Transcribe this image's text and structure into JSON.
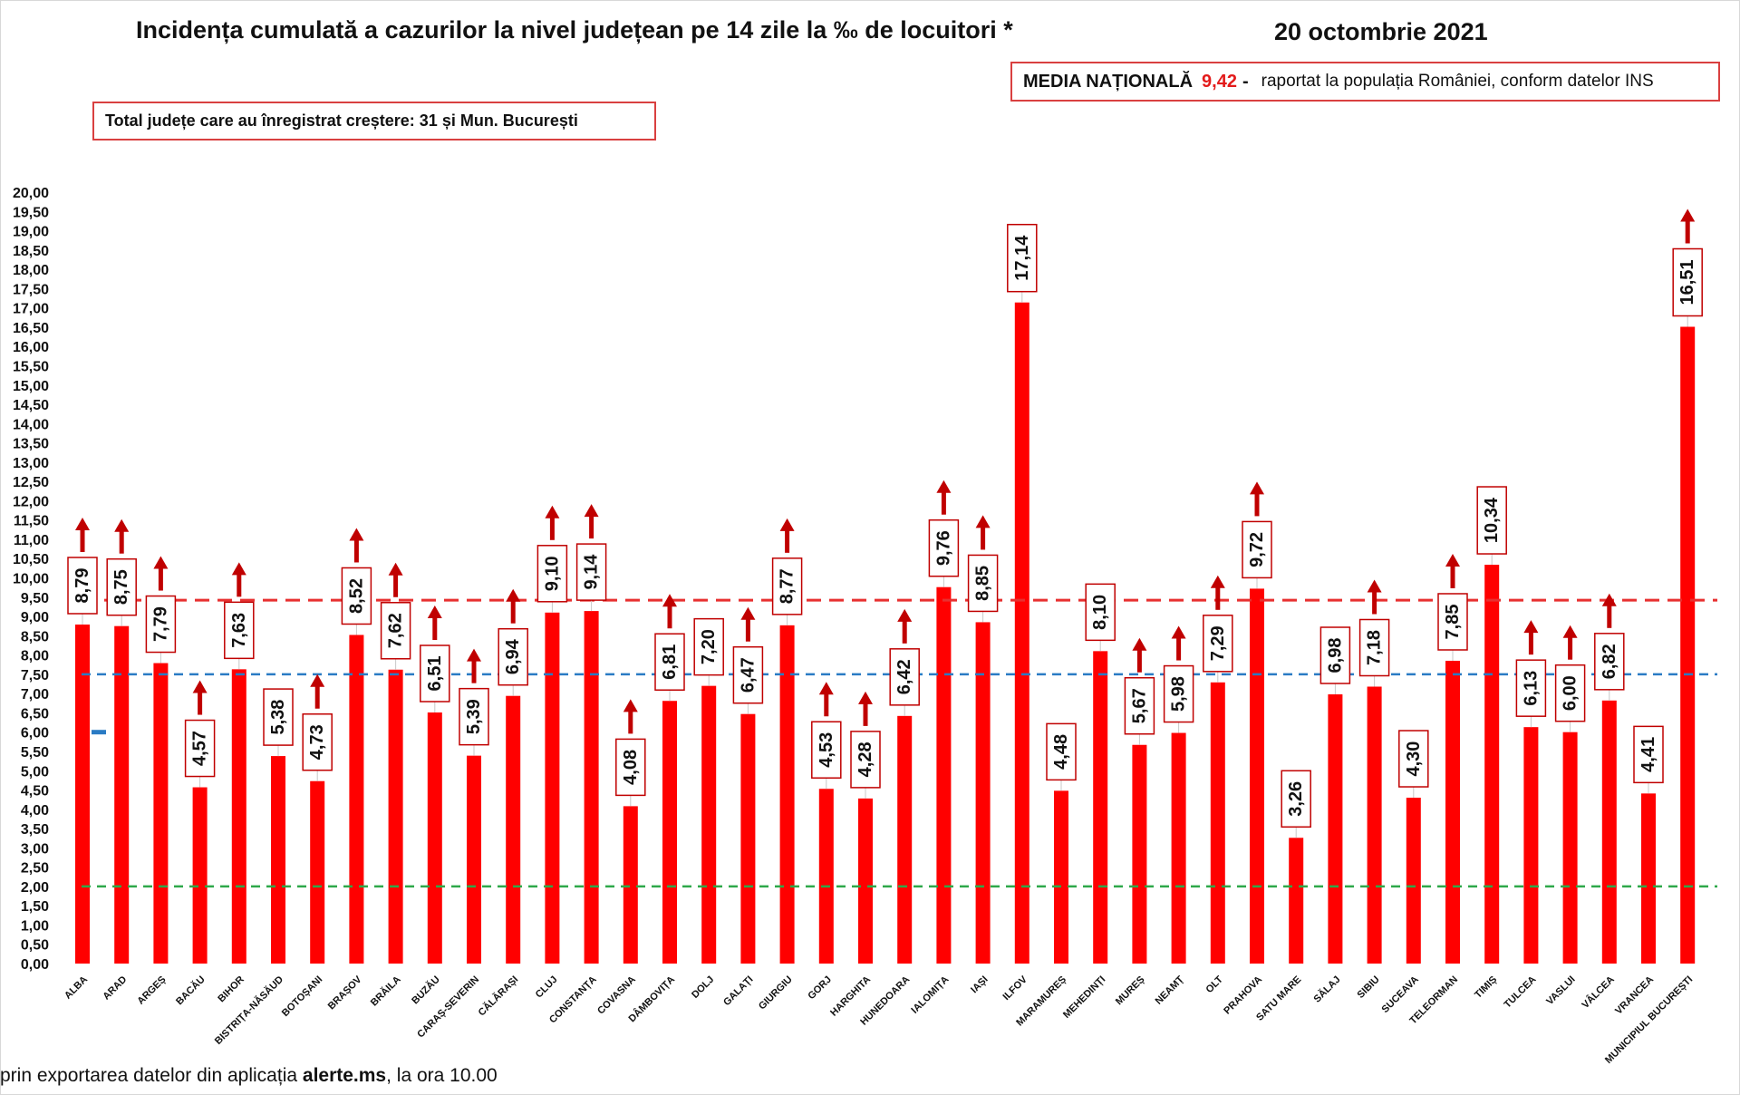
{
  "header": {
    "title": "Incidența cumulată a cazurilor la nivel județean pe 14 zile la ‰ de locuitori *",
    "date": "20 octombrie 2021"
  },
  "media_box": {
    "label": "MEDIA NAȚIONALĂ",
    "value": "9,42",
    "dash": "-",
    "note": "raportat la populația României, conform datelor INS"
  },
  "total_box": {
    "text": "Total județe care au înregistrat creștere:  31 și Mun. București"
  },
  "footer": {
    "prefix": "prin exportarea datelor din aplicația",
    "app": "alerte.ms",
    "suffix": ", la ora 10.00"
  },
  "colors": {
    "bar": "#ff0000",
    "arrow": "#c00000",
    "label_border": "#c00000",
    "line_red": "#e83030",
    "line_blue": "#2a7bc4",
    "line_green": "#2ea84a"
  },
  "chart_data": {
    "type": "bar",
    "ylim": [
      0,
      20
    ],
    "y_ticks": [
      "0,00",
      "0,50",
      "1,00",
      "1,50",
      "2,00",
      "2,50",
      "3,00",
      "3,50",
      "4,00",
      "4,50",
      "5,00",
      "5,50",
      "6,00",
      "6,50",
      "7,00",
      "7,50",
      "8,00",
      "8,50",
      "9,00",
      "9,50",
      "10,00",
      "10,50",
      "11,00",
      "11,50",
      "12,00",
      "12,50",
      "13,00",
      "13,50",
      "14,00",
      "14,50",
      "15,00",
      "15,50",
      "16,00",
      "16,50",
      "17,00",
      "17,50",
      "18,00",
      "18,50",
      "19,00",
      "19,50",
      "20,00"
    ],
    "categories": [
      "ALBA",
      "ARAD",
      "ARGEȘ",
      "BACĂU",
      "BIHOR",
      "BISTRIȚA-NĂSĂUD",
      "BOTOȘANI",
      "BRAȘOV",
      "BRĂILA",
      "BUZĂU",
      "CARAȘ-SEVERIN",
      "CĂLĂRAȘI",
      "CLUJ",
      "CONSTANȚA",
      "COVASNA",
      "DÂMBOVIȚA",
      "DOLJ",
      "GALAȚI",
      "GIURGIU",
      "GORJ",
      "HARGHITA",
      "HUNEDOARA",
      "IALOMIȚA",
      "IAȘI",
      "ILFOV",
      "MARAMUREȘ",
      "MEHEDINȚI",
      "MUREȘ",
      "NEAMȚ",
      "OLT",
      "PRAHOVA",
      "SATU MARE",
      "SĂLAJ",
      "SIBIU",
      "SUCEAVA",
      "TELEORMAN",
      "TIMIȘ",
      "TULCEA",
      "VASLUI",
      "VÂLCEA",
      "VRANCEA",
      "MUNICIPIUL BUCUREȘTI"
    ],
    "values": [
      8.79,
      8.75,
      7.79,
      4.57,
      7.63,
      5.38,
      4.73,
      8.52,
      7.62,
      6.51,
      5.39,
      6.94,
      9.1,
      9.14,
      4.08,
      6.81,
      7.2,
      6.47,
      8.77,
      4.53,
      4.28,
      6.42,
      9.76,
      8.85,
      17.14,
      4.48,
      8.1,
      5.67,
      5.98,
      7.29,
      9.72,
      3.26,
      6.98,
      7.18,
      4.3,
      7.85,
      10.34,
      6.13,
      6.0,
      6.82,
      4.41,
      16.51
    ],
    "labels": [
      "8,79",
      "8,75",
      "7,79",
      "4,57",
      "7,63",
      "5,38",
      "4,73",
      "8,52",
      "7,62",
      "6,51",
      "5,39",
      "6,94",
      "9,10",
      "9,14",
      "4,08",
      "6,81",
      "7,20",
      "6,47",
      "8,77",
      "4,53",
      "4,28",
      "6,42",
      "9,76",
      "8,85",
      "17,14",
      "4,48",
      "8,10",
      "5,67",
      "5,98",
      "7,29",
      "9,72",
      "3,26",
      "6,98",
      "7,18",
      "4,30",
      "7,85",
      "10,34",
      "6,13",
      "6,00",
      "6,82",
      "4,41",
      "16,51"
    ],
    "increase": [
      true,
      true,
      true,
      true,
      true,
      false,
      true,
      true,
      true,
      true,
      true,
      true,
      true,
      true,
      true,
      true,
      false,
      true,
      true,
      true,
      true,
      true,
      true,
      true,
      false,
      false,
      false,
      true,
      true,
      true,
      true,
      false,
      false,
      true,
      false,
      true,
      false,
      true,
      true,
      true,
      false,
      true
    ],
    "reference_lines": [
      {
        "value": 9.42,
        "color": "red",
        "style": "dashed"
      },
      {
        "value": 7.5,
        "color": "blue",
        "style": "dashed"
      },
      {
        "value": 2.0,
        "color": "green",
        "style": "dashed"
      }
    ],
    "alba_marker": 6.0,
    "grid": false,
    "legend": "none"
  }
}
